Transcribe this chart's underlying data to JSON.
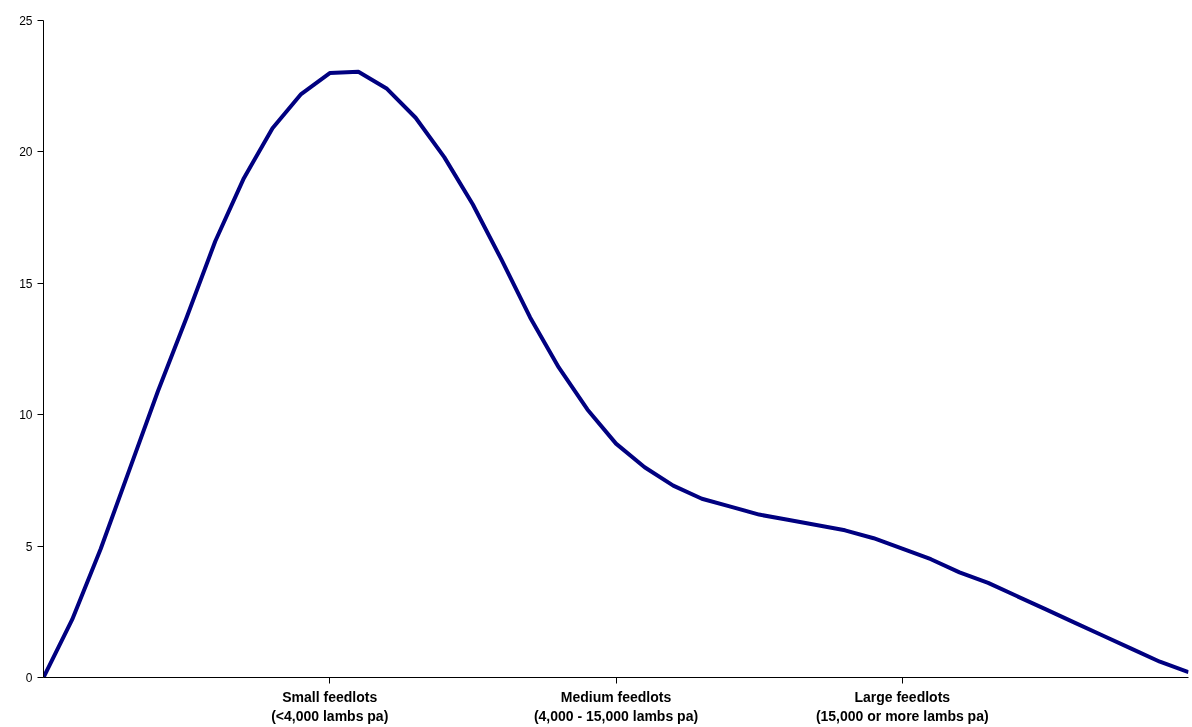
{
  "chart_data": {
    "type": "line",
    "ylim": [
      0,
      25
    ],
    "yticks": [
      0,
      5,
      10,
      15,
      20,
      25
    ],
    "categories": [
      null,
      null,
      null,
      null,
      null,
      null,
      null,
      null,
      null,
      null,
      "Small feedlots\n(<4,000 lambs pa)",
      null,
      null,
      null,
      null,
      null,
      null,
      null,
      null,
      null,
      "Medium feedlots\n(4,000 - 15,000 lambs pa)",
      null,
      null,
      null,
      null,
      null,
      null,
      null,
      null,
      null,
      "Large feedlots\n(15,000 or more lambs pa)",
      null,
      null,
      null,
      null,
      null,
      null,
      null,
      null,
      null,
      null
    ],
    "series": [
      {
        "color": "#000080",
        "values": [
          0,
          2.2,
          4.9,
          7.9,
          10.9,
          13.7,
          16.6,
          19.0,
          20.9,
          22.2,
          23.0,
          23.05,
          22.4,
          21.3,
          19.8,
          18.0,
          15.9,
          13.7,
          11.8,
          10.2,
          8.9,
          8.0,
          7.3,
          6.8,
          6.5,
          6.2,
          6.0,
          5.8,
          5.6,
          5.3,
          4.9,
          4.5,
          4.0,
          3.6,
          3.1,
          2.6,
          2.1,
          1.6,
          1.1,
          0.6,
          0.2
        ]
      }
    ],
    "grid": false,
    "marker": "none",
    "line_style": "solid"
  }
}
